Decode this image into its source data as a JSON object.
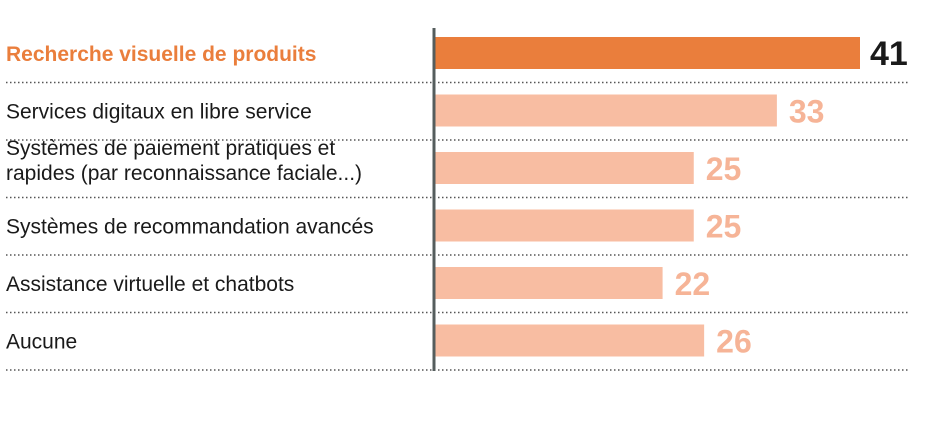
{
  "chart_data": {
    "type": "bar",
    "orientation": "horizontal",
    "categories": [
      [
        "Recherche visuelle de produits"
      ],
      [
        "Services digitaux en libre service"
      ],
      [
        "Systèmes de paiement pratiques et",
        "rapides (par reconnaissance faciale...)"
      ],
      [
        "Systèmes de recommandation avancés"
      ],
      [
        "Assistance virtuelle et chatbots"
      ],
      [
        "Aucune"
      ]
    ],
    "values": [
      41,
      33,
      25,
      25,
      22,
      26
    ],
    "value_labels": [
      "41",
      "33",
      "25",
      "25",
      "22",
      "26"
    ],
    "highlight_index": 0,
    "title": "",
    "xlabel": "",
    "ylabel": "",
    "xlim": [
      0,
      41
    ],
    "grid": false,
    "legend": "none"
  },
  "colors": {
    "highlight_bar": "#ea7e3c",
    "highlight_label": "#ea7e3c",
    "bar": "#f8bda2",
    "value_label": "#f6b497",
    "category_label": "#1a1a1a",
    "highlight_value_label": "#1a1a1a",
    "axis_line": "#555d5d",
    "separator": "#555555"
  }
}
